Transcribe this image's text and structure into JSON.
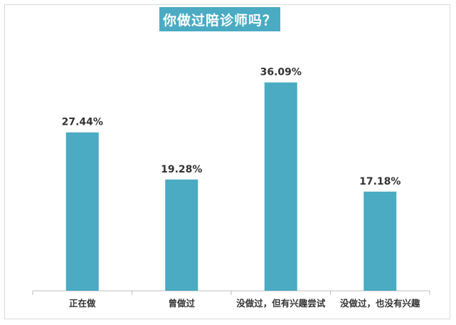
{
  "chart_data": {
    "type": "bar",
    "title": "你做过陪诊师吗？",
    "categories": [
      "正在做",
      "曾做过",
      "没做过，但有兴趣尝试",
      "没做过，也没有兴趣"
    ],
    "values": [
      27.44,
      19.28,
      36.09,
      17.18
    ],
    "value_labels": [
      "27.44%",
      "19.28%",
      "36.09%",
      "17.18%"
    ],
    "bar_color": "#4aabc3",
    "title_bg": "#4aabc3",
    "ylim": [
      0,
      40
    ],
    "grid": false,
    "legend": "none"
  }
}
